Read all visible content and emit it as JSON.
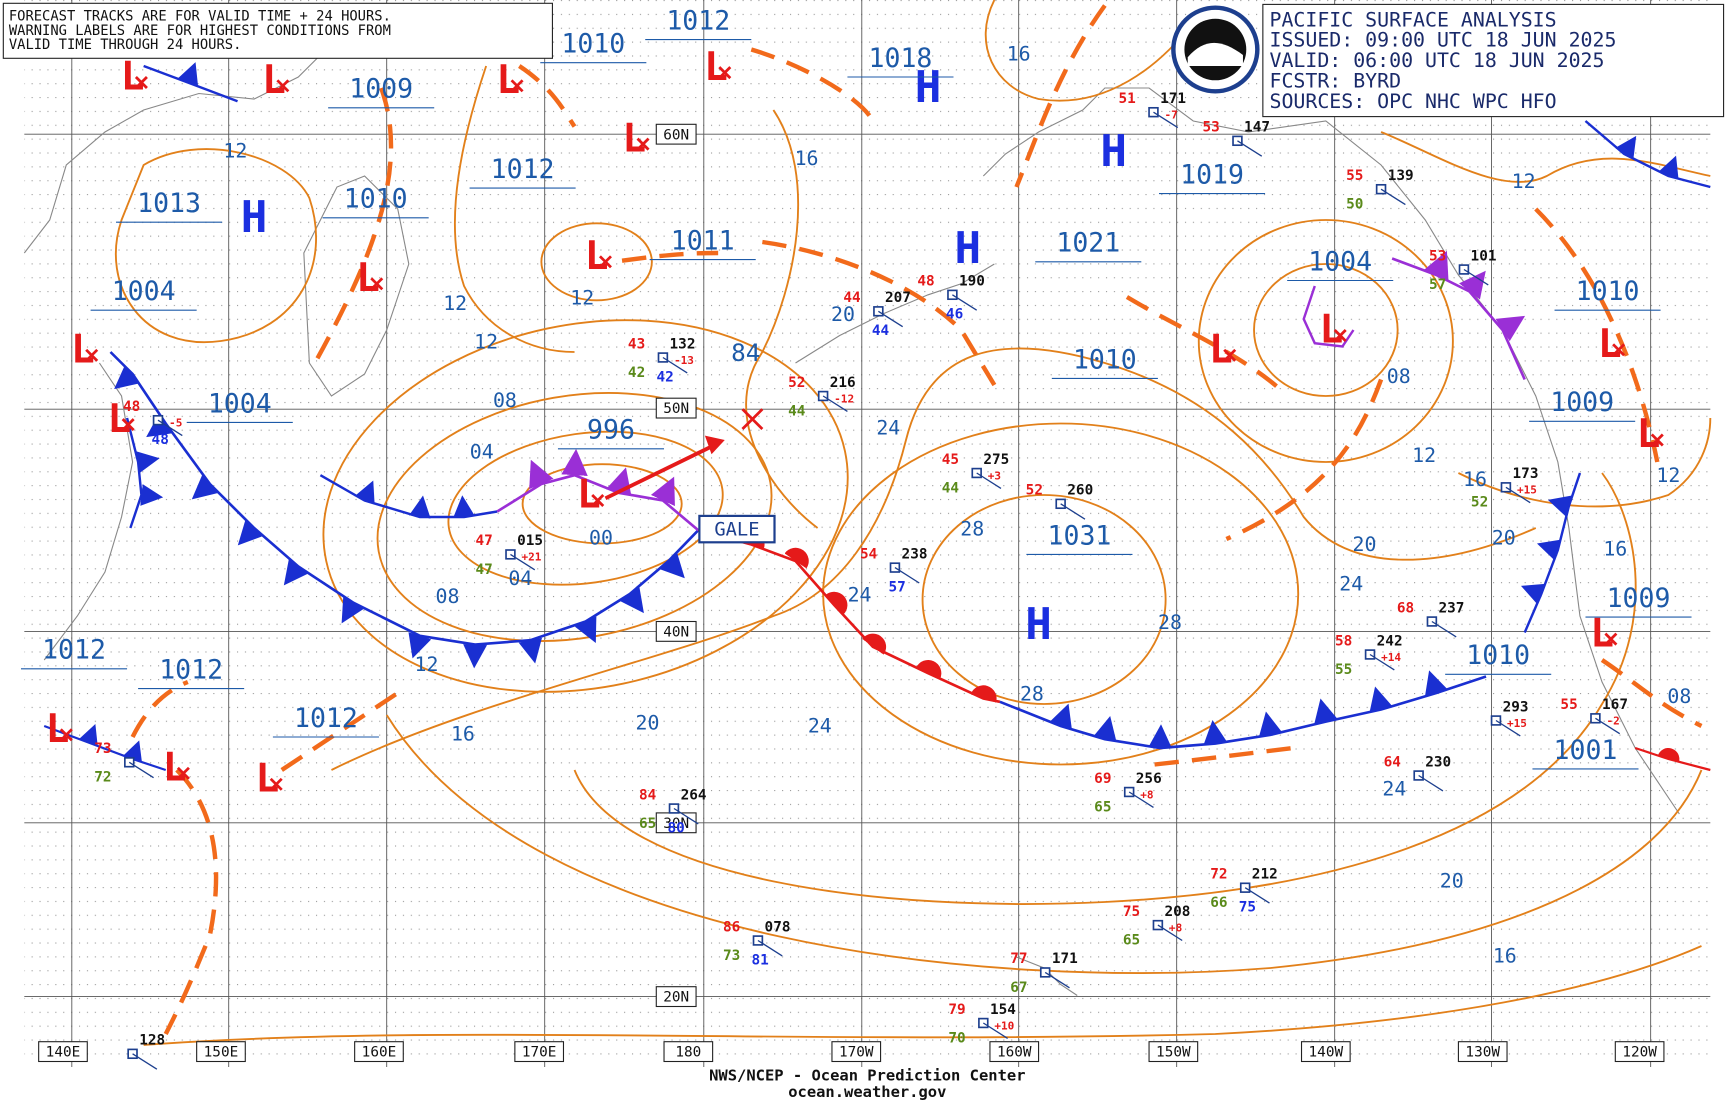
{
  "header": {
    "lines": [
      "PACIFIC SURFACE ANALYSIS",
      "ISSUED: 09:00 UTC 18 JUN 2025",
      "VALID:  06:00 UTC 18 JUN 2025",
      "FCSTR:  BYRD",
      "SOURCES:  OPC NHC WPC HFO"
    ]
  },
  "note": {
    "lines": [
      "FORECAST TRACKS ARE FOR VALID TIME + 24 HOURS.",
      "WARNING LABELS ARE FOR HIGHEST CONDITIONS FROM",
      "VALID TIME THROUGH 24 HOURS."
    ]
  },
  "footer": {
    "lines": [
      "NWS/NCEP - Ocean Prediction Center",
      "ocean.weather.gov"
    ]
  },
  "longitude_labels": [
    "140E",
    "150E",
    "160E",
    "170E",
    "180",
    "170W",
    "160W",
    "150W",
    "140W",
    "130W",
    "120W"
  ],
  "latitude_labels": [
    "60N",
    "50N",
    "40N",
    "30N",
    "20N"
  ],
  "centers": [
    "H",
    "H",
    "H",
    "H",
    "H",
    "L",
    "L",
    "L",
    "L",
    "L",
    "L",
    "L",
    "L",
    "L",
    "L",
    "L",
    "L",
    "L",
    "L",
    "L",
    "L",
    "L",
    "L"
  ],
  "center_pressures": [
    "1009",
    "1010",
    "1012",
    "1018",
    "1012",
    "1010",
    "1013",
    "1004",
    "1004",
    "996",
    "1011",
    "1019",
    "1021",
    "1010",
    "1004",
    "1010",
    "1009",
    "1031",
    "1009",
    "1010",
    "1001",
    "1012",
    "1012",
    "1012"
  ],
  "isobar_labels": [
    "12",
    "16",
    "16",
    "12",
    "12",
    "12",
    "08",
    "04",
    "00",
    "04",
    "08",
    "12",
    "16",
    "20",
    "24",
    "24",
    "24",
    "28",
    "28",
    "28",
    "20",
    "20",
    "24",
    "12",
    "08",
    "12",
    "16",
    "16",
    "12",
    "08",
    "24",
    "20",
    "16",
    "20"
  ],
  "warnings": [
    "GALE"
  ],
  "storm_label": "84",
  "stations": [
    {
      "t": "43",
      "p": "132",
      "tend": "-13",
      "d": "42",
      "s": "42"
    },
    {
      "t": "52",
      "p": "216",
      "tend": "-12",
      "d": "44"
    },
    {
      "t": "44",
      "p": "207",
      "s": "44"
    },
    {
      "t": "48",
      "p": "190",
      "s": "46"
    },
    {
      "t": "45",
      "p": "275",
      "tend": "+3",
      "d": "44"
    },
    {
      "t": "52",
      "p": "260"
    },
    {
      "t": "54",
      "p": "238",
      "s": "57"
    },
    {
      "t": "47",
      "p": "015",
      "tend": "+21",
      "d": "47"
    },
    {
      "t": "69",
      "p": "256",
      "tend": "+8",
      "d": "65"
    },
    {
      "t": "75",
      "p": "208",
      "tend": "+8",
      "d": "65"
    },
    {
      "t": "72",
      "p": "212",
      "d": "66",
      "s": "75"
    },
    {
      "t": "86",
      "p": "078",
      "d": "73",
      "s": "81"
    },
    {
      "t": "77",
      "p": "171",
      "d": "67"
    },
    {
      "t": "79",
      "p": "154",
      "tend": "+10",
      "d": "70"
    },
    {
      "t": "84",
      "p": "264",
      "d": "65",
      "s": "80"
    },
    {
      "t": "58",
      "p": "242",
      "tend": "+14",
      "d": "55"
    },
    {
      "t": "68",
      "p": "237"
    },
    {
      "t": "64",
      "p": "230"
    },
    {
      "p": "293",
      "tend": "+15"
    },
    {
      "p": "173",
      "tend": "+15",
      "d": "52"
    },
    {
      "t": "55",
      "p": "167",
      "tend": "-2"
    },
    {
      "t": "51",
      "p": "171",
      "tend": "-7"
    },
    {
      "t": "53",
      "p": "147"
    },
    {
      "t": "53",
      "p": "101",
      "d": "57"
    },
    {
      "t": "55",
      "p": "139",
      "d": "50"
    },
    {
      "t": "48",
      "tend": "-5",
      "s": "48"
    },
    {
      "t": "73",
      "d": "72"
    },
    {
      "p": "128"
    }
  ]
}
